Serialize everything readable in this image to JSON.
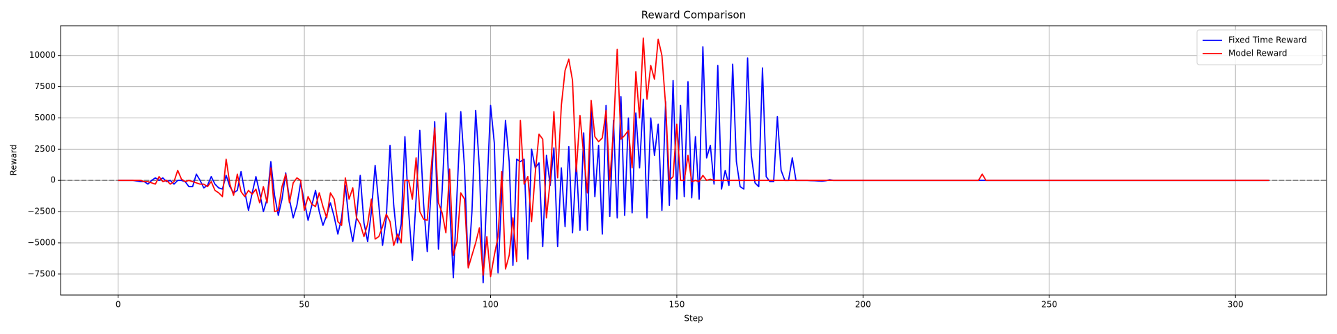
{
  "chart_data": {
    "type": "line",
    "title": "Reward Comparison",
    "xlabel": "Step",
    "ylabel": "Reward",
    "x": [
      0,
      1,
      2,
      3,
      4,
      5,
      6,
      7,
      8,
      9,
      10,
      11,
      12,
      13,
      14,
      15,
      16,
      17,
      18,
      19,
      20,
      21,
      22,
      23,
      24,
      25,
      26,
      27,
      28,
      29,
      30,
      31,
      32,
      33,
      34,
      35,
      36,
      37,
      38,
      39,
      40,
      41,
      42,
      43,
      44,
      45,
      46,
      47,
      48,
      49,
      50,
      51,
      52,
      53,
      54,
      55,
      56,
      57,
      58,
      59,
      60,
      61,
      62,
      63,
      64,
      65,
      66,
      67,
      68,
      69,
      70,
      71,
      72,
      73,
      74,
      75,
      76,
      77,
      78,
      79,
      80,
      81,
      82,
      83,
      84,
      85,
      86,
      87,
      88,
      89,
      90,
      91,
      92,
      93,
      94,
      95,
      96,
      97,
      98,
      99,
      100,
      101,
      102,
      103,
      104,
      105,
      106,
      107,
      108,
      109,
      110,
      111,
      112,
      113,
      114,
      115,
      116,
      117,
      118,
      119,
      120,
      121,
      122,
      123,
      124,
      125,
      126,
      127,
      128,
      129,
      130,
      131,
      132,
      133,
      134,
      135,
      136,
      137,
      138,
      139,
      140,
      141,
      142,
      143,
      144,
      145,
      146,
      147,
      148,
      149,
      150,
      151,
      152,
      153,
      154,
      155,
      156,
      157,
      158,
      159,
      160,
      161,
      162,
      163,
      164,
      165,
      166,
      167,
      168,
      169,
      170,
      171,
      172,
      173,
      174,
      175,
      176,
      177,
      178,
      179,
      180,
      181,
      182,
      183,
      184,
      185,
      186,
      187,
      188,
      189,
      190,
      191,
      192,
      193,
      194,
      195,
      196,
      197,
      198,
      199,
      200,
      201,
      202,
      203,
      204,
      205,
      206,
      207,
      208,
      209,
      210,
      211,
      212,
      213,
      214,
      215,
      216,
      217,
      218,
      219,
      220,
      221,
      222,
      223,
      224,
      225,
      226,
      227,
      228,
      229,
      230,
      231,
      232,
      233,
      234,
      235,
      236,
      237,
      238,
      239,
      240,
      241,
      242,
      243,
      244,
      245,
      246,
      247,
      248,
      249,
      250,
      251,
      252,
      253,
      254,
      255,
      256,
      257,
      258,
      259,
      260,
      261,
      262,
      263,
      264,
      265,
      266,
      267,
      268,
      269,
      270,
      271,
      272,
      273,
      274,
      275,
      276,
      277,
      278,
      279,
      280,
      281,
      282,
      283,
      284,
      285,
      286,
      287,
      288,
      289,
      290,
      291,
      292,
      293,
      294,
      295,
      296,
      297,
      298,
      299,
      300,
      301,
      302,
      303,
      304,
      305,
      306,
      307,
      308,
      309
    ],
    "series": [
      {
        "name": "Fixed Time Reward",
        "color": "blue",
        "values": [
          0,
          0,
          0,
          0,
          0,
          -50,
          -100,
          -100,
          -300,
          0,
          200,
          0,
          200,
          -100,
          0,
          -300,
          0,
          0,
          -100,
          -500,
          -500,
          500,
          0,
          -600,
          -400,
          300,
          -300,
          -600,
          -700,
          400,
          -500,
          -1000,
          -800,
          700,
          -900,
          -2400,
          -1000,
          300,
          -1000,
          -2500,
          -1500,
          1500,
          -1200,
          -2800,
          -1500,
          600,
          -1500,
          -3000,
          -2000,
          -200,
          -1700,
          -3200,
          -2000,
          -800,
          -2500,
          -3600,
          -2800,
          -1800,
          -2900,
          -4300,
          -3000,
          -400,
          -3300,
          -4900,
          -3000,
          400,
          -3400,
          -4900,
          -2500,
          1200,
          -2000,
          -5200,
          -3000,
          2800,
          -2000,
          -5000,
          -3500,
          3500,
          -2500,
          -6400,
          -1500,
          4000,
          -1800,
          -5700,
          -1000,
          4700,
          -5500,
          -800,
          5400,
          -2000,
          -7800,
          -1000,
          5500,
          1000,
          -7000,
          -2500,
          5600,
          1000,
          -8200,
          -1000,
          6000,
          3000,
          -7400,
          -1000,
          4800,
          1500,
          -6800,
          1700,
          1500,
          1700,
          -6300,
          2500,
          1000,
          1400,
          -5300,
          2000,
          -400,
          2600,
          -5300,
          1000,
          -3700,
          2700,
          -4200,
          1500,
          -4000,
          3800,
          -4000,
          5800,
          -1300,
          2800,
          -4300,
          6000,
          -2900,
          4800,
          -3000,
          6700,
          -2800,
          5000,
          -2600,
          5400,
          1000,
          6500,
          -3000,
          5000,
          2000,
          4500,
          -2400,
          6300,
          -2000,
          8000,
          -1500,
          6000,
          -1300,
          7900,
          -1400,
          3500,
          -1500,
          10700,
          1800,
          2800,
          -300,
          9200,
          -700,
          800,
          -400,
          9300,
          1500,
          -500,
          -700,
          9800,
          2000,
          -200,
          -500,
          9000,
          300,
          -100,
          -100,
          5100,
          800,
          0,
          0,
          1800,
          0,
          0,
          0,
          0,
          -20,
          -30,
          -50,
          -60,
          -30,
          50,
          0,
          0,
          0,
          0,
          0,
          0,
          0,
          0,
          0,
          0,
          0,
          0,
          0,
          0,
          0,
          0,
          0,
          0,
          0,
          0,
          0,
          0,
          0,
          0,
          0,
          0,
          0,
          0,
          0,
          0,
          0,
          0,
          0,
          0,
          0,
          0,
          0,
          0,
          0,
          0,
          0,
          0,
          0,
          0,
          0,
          0,
          0,
          0,
          0,
          0,
          0,
          0,
          0,
          0,
          0,
          0,
          0,
          0,
          0,
          0,
          0,
          0,
          0,
          0,
          0,
          0,
          0,
          0,
          0,
          0,
          0,
          0,
          0,
          0,
          0,
          0,
          0,
          0,
          0,
          0,
          0,
          0,
          0,
          0,
          0,
          0,
          0,
          0,
          0,
          0,
          0,
          0,
          0,
          0,
          0,
          0,
          0,
          0,
          0,
          0,
          0,
          0,
          0,
          0,
          0,
          0,
          0,
          0,
          0,
          0,
          0,
          0,
          0,
          0,
          0,
          0,
          0,
          0
        ]
      },
      {
        "name": "Model Reward",
        "color": "red",
        "values": [
          0,
          0,
          0,
          0,
          0,
          0,
          0,
          -100,
          -100,
          -200,
          -300,
          300,
          -100,
          0,
          -300,
          -100,
          800,
          100,
          -100,
          0,
          -100,
          -200,
          -300,
          -300,
          -500,
          -100,
          -800,
          -1000,
          -1300,
          1700,
          -300,
          -1200,
          500,
          -900,
          -1300,
          -800,
          -1100,
          -700,
          -1800,
          -500,
          -1800,
          1000,
          -2500,
          -2400,
          -500,
          500,
          -1800,
          -200,
          200,
          0,
          -2400,
          -1300,
          -1900,
          -2100,
          -1000,
          -2100,
          -3000,
          -1000,
          -1500,
          -3300,
          -3600,
          200,
          -1500,
          -600,
          -3000,
          -3500,
          -4500,
          -3500,
          -1500,
          -4700,
          -4500,
          -3700,
          -2700,
          -3300,
          -5200,
          -4300,
          -5000,
          0,
          0,
          -1500,
          1800,
          -2500,
          -3100,
          -3200,
          800,
          4200,
          -1800,
          -2600,
          -4200,
          900,
          -6000,
          -4900,
          -1000,
          -1500,
          -7000,
          -6000,
          -5000,
          -3800,
          -7600,
          -4500,
          -7700,
          -6000,
          -4500,
          700,
          -7100,
          -6000,
          -3000,
          -6500,
          4800,
          -300,
          300,
          -3300,
          600,
          3700,
          3300,
          -3000,
          0,
          5500,
          200,
          6000,
          8800,
          9700,
          8000,
          700,
          5200,
          2000,
          -1000,
          6400,
          3500,
          3100,
          3400,
          5600,
          0,
          4000,
          10500,
          3300,
          3600,
          4000,
          1000,
          8700,
          5000,
          11400,
          6500,
          9200,
          8100,
          11300,
          10000,
          6000,
          0,
          300,
          4500,
          0,
          0,
          2000,
          -100,
          0,
          -100,
          400,
          0,
          100,
          0,
          0,
          0,
          0,
          0,
          0,
          0,
          0,
          0,
          0,
          0,
          0,
          0,
          0,
          0,
          0,
          0,
          0,
          0,
          0,
          0,
          0,
          0,
          0,
          0,
          0,
          0,
          0,
          0,
          0,
          0,
          0,
          0,
          0,
          0,
          0,
          0,
          0,
          0,
          0,
          0,
          0,
          0,
          0,
          0,
          0,
          0,
          0,
          0,
          0,
          0,
          0,
          0,
          0,
          0,
          0,
          0,
          0,
          0,
          0,
          0,
          0,
          0,
          0,
          0,
          0,
          0,
          0,
          0,
          0,
          0,
          0,
          500,
          0,
          0,
          0,
          0,
          0,
          0,
          0,
          0,
          0,
          0,
          0,
          0,
          0,
          0,
          0,
          0,
          0,
          0,
          0,
          0,
          0,
          0,
          0,
          0,
          0,
          0,
          0,
          0,
          0,
          0,
          0,
          0,
          0,
          0,
          0,
          0,
          0,
          0,
          0,
          0,
          0,
          0,
          0,
          0,
          0,
          0,
          0,
          0,
          0,
          0,
          0,
          0,
          0,
          0,
          0,
          0,
          0,
          0,
          0,
          0,
          0,
          0,
          0,
          0,
          0,
          0,
          0,
          0,
          0,
          0,
          0,
          0,
          0,
          0,
          0,
          0,
          0
        ]
      }
    ],
    "axhline": 0,
    "xlim": [
      -15.45,
      324.45
    ],
    "ylim": [
      -9180,
      12380
    ],
    "xticks": [
      0,
      50,
      100,
      150,
      200,
      250,
      300
    ],
    "yticks": [
      {
        "value": -7500,
        "label": "−7500"
      },
      {
        "value": -5000,
        "label": "−5000"
      },
      {
        "value": -2500,
        "label": "−2500"
      },
      0,
      2500,
      5000,
      7500,
      10000
    ],
    "grid": true,
    "legend": "upper right"
  }
}
